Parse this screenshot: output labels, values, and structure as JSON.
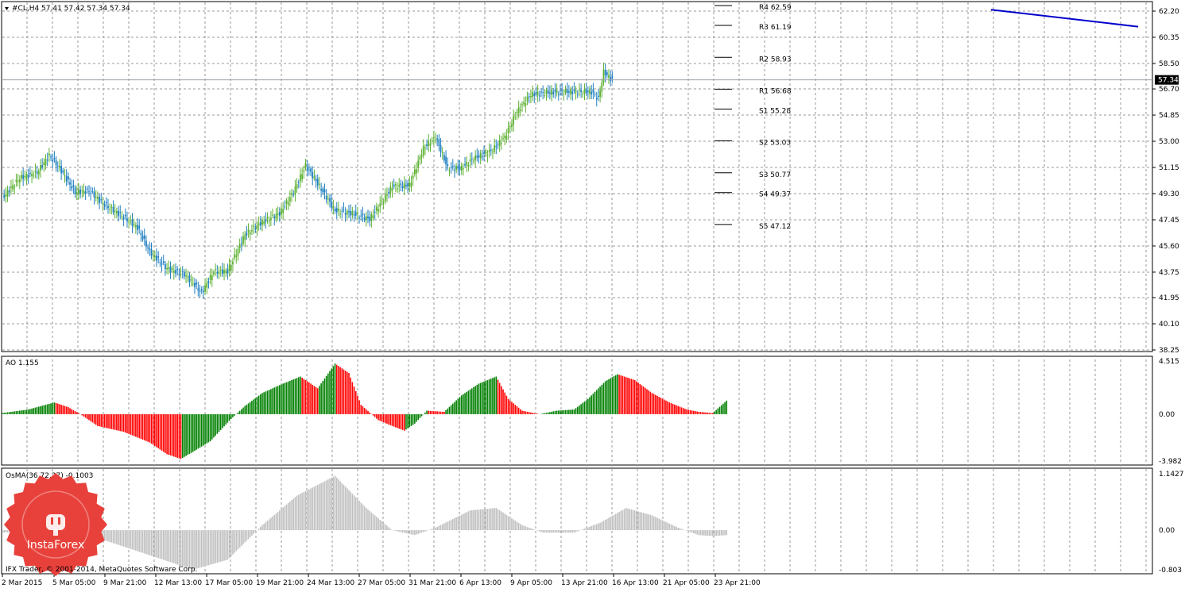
{
  "main_chart": {
    "header": "#CL,H4  57.41 57.42 57.34 57.34",
    "price_scale": [
      "62.20",
      "60.35",
      "58.50",
      "56.70",
      "54.85",
      "53.00",
      "51.15",
      "49.30",
      "47.45",
      "45.60",
      "43.75",
      "41.95",
      "40.10",
      "38.25"
    ],
    "current_price_badge": "57.34",
    "pivot_levels": [
      {
        "label": "R4 62.59",
        "value": 62.59
      },
      {
        "label": "R3 61.19",
        "value": 61.19
      },
      {
        "label": "R2 58.93",
        "value": 58.93
      },
      {
        "label": "R1 56.68",
        "value": 56.68
      },
      {
        "label": "S1 55.28",
        "value": 55.28
      },
      {
        "label": "S2 53.03",
        "value": 53.03
      },
      {
        "label": "S3 50.77",
        "value": 50.77
      },
      {
        "label": "S4 49.37",
        "value": 49.37
      },
      {
        "label": "S5 47.12",
        "value": 47.12
      }
    ],
    "colors": {
      "bull": "#5fb233",
      "bear": "#1f7fc1",
      "trendline": "#0000cc",
      "grid": "#9a9a9a"
    }
  },
  "ao": {
    "header": "AO 1.155",
    "scale": [
      "4.515",
      "0.00",
      "-3.982"
    ],
    "colors": {
      "up": "#008000",
      "down": "#ff0000"
    }
  },
  "osma": {
    "header": "OsMA(36,72,27) -0.1003",
    "scale": [
      "1.1427",
      "0.00",
      "-0.803"
    ],
    "color": "#c0c0c0"
  },
  "time_axis": [
    "2 Mar 2015",
    "5 Mar 05:00",
    "9 Mar 21:00",
    "12 Mar 13:00",
    "17 Mar 05:00",
    "19 Mar 21:00",
    "24 Mar 13:00",
    "27 Mar 05:00",
    "31 Mar 21:00",
    "6 Apr 13:00",
    "9 Apr 05:00",
    "13 Apr 21:00",
    "16 Apr 13:00",
    "21 Apr 05:00",
    "23 Apr 21:00"
  ],
  "watermark": {
    "brand": "InstaForex",
    "copyright": "IFX Trader, © 2001-2014, MetaQuotes Software Corp."
  },
  "chart_data": [
    {
      "type": "candlestick",
      "title": "#CL,H4",
      "ohlc_last": {
        "open": 57.41,
        "high": 57.42,
        "low": 57.34,
        "close": 57.34
      },
      "x_start": "2 Mar 2015",
      "x_end": "23 Apr 21:00",
      "ylim": [
        38.25,
        62.2
      ],
      "close_anchors": [
        [
          0,
          49.0
        ],
        [
          10,
          50.4
        ],
        [
          20,
          50.8
        ],
        [
          27,
          52.0
        ],
        [
          33,
          51.1
        ],
        [
          42,
          49.4
        ],
        [
          50,
          49.5
        ],
        [
          58,
          48.6
        ],
        [
          68,
          47.8
        ],
        [
          78,
          46.9
        ],
        [
          85,
          45.2
        ],
        [
          95,
          44.0
        ],
        [
          105,
          43.6
        ],
        [
          115,
          42.3
        ],
        [
          122,
          43.8
        ],
        [
          130,
          43.8
        ],
        [
          140,
          46.4
        ],
        [
          150,
          47.3
        ],
        [
          160,
          47.9
        ],
        [
          168,
          49.4
        ],
        [
          175,
          51.3
        ],
        [
          182,
          50.0
        ],
        [
          192,
          48.1
        ],
        [
          202,
          47.9
        ],
        [
          212,
          47.5
        ],
        [
          225,
          49.8
        ],
        [
          235,
          49.9
        ],
        [
          243,
          52.5
        ],
        [
          250,
          53.3
        ],
        [
          257,
          51.1
        ],
        [
          265,
          51.1
        ],
        [
          272,
          51.8
        ],
        [
          282,
          52.3
        ],
        [
          290,
          53.3
        ],
        [
          297,
          55.1
        ],
        [
          305,
          56.3
        ],
        [
          312,
          56.4
        ],
        [
          320,
          56.5
        ],
        [
          330,
          56.5
        ],
        [
          340,
          56.5
        ],
        [
          344,
          56.0
        ],
        [
          347,
          57.9
        ],
        [
          352,
          57.34
        ]
      ],
      "pivots": {
        "R4": 62.59,
        "R3": 61.19,
        "R2": 58.93,
        "R1": 56.68,
        "S1": 55.28,
        "S2": 53.03,
        "S3": 50.77,
        "S4": 49.37,
        "S5": 47.12
      },
      "trendline": {
        "from": 62.3,
        "to": 61.1
      }
    },
    {
      "type": "bar",
      "title": "AO 1.155",
      "ylim": [
        -3.982,
        4.515
      ],
      "anchors": [
        [
          0,
          0.1
        ],
        [
          15,
          0.4
        ],
        [
          30,
          1.0
        ],
        [
          38,
          0.6
        ],
        [
          45,
          0
        ],
        [
          55,
          -1.0
        ],
        [
          70,
          -1.5
        ],
        [
          85,
          -2.4
        ],
        [
          95,
          -3.4
        ],
        [
          103,
          -3.8
        ],
        [
          110,
          -3.2
        ],
        [
          120,
          -2.3
        ],
        [
          132,
          -0.4
        ],
        [
          140,
          0.7
        ],
        [
          150,
          1.8
        ],
        [
          162,
          2.6
        ],
        [
          172,
          3.2
        ],
        [
          182,
          2.2
        ],
        [
          192,
          4.3
        ],
        [
          200,
          3.5
        ],
        [
          207,
          0.8
        ],
        [
          217,
          -0.5
        ],
        [
          225,
          -1.0
        ],
        [
          232,
          -1.4
        ],
        [
          238,
          -0.8
        ],
        [
          245,
          0.3
        ],
        [
          255,
          0.2
        ],
        [
          265,
          1.6
        ],
        [
          275,
          2.6
        ],
        [
          285,
          3.2
        ],
        [
          292,
          1.3
        ],
        [
          300,
          0.3
        ],
        [
          310,
          0
        ],
        [
          320,
          0.3
        ],
        [
          330,
          0.4
        ],
        [
          338,
          1.3
        ],
        [
          348,
          2.8
        ],
        [
          355,
          3.4
        ],
        [
          365,
          2.9
        ],
        [
          375,
          1.8
        ],
        [
          385,
          1.0
        ],
        [
          395,
          0.4
        ],
        [
          402,
          0.2
        ],
        [
          410,
          0.1
        ],
        [
          418,
          1.155
        ]
      ]
    },
    {
      "type": "bar",
      "title": "OsMA(36,72,27)",
      "ylim": [
        -0.803,
        1.1427
      ],
      "anchors": [
        [
          0,
          -0.05
        ],
        [
          30,
          0.0
        ],
        [
          50,
          -0.1
        ],
        [
          80,
          -0.45
        ],
        [
          110,
          -0.8
        ],
        [
          130,
          -0.6
        ],
        [
          150,
          0.1
        ],
        [
          170,
          0.7
        ],
        [
          192,
          1.1
        ],
        [
          210,
          0.45
        ],
        [
          225,
          0.0
        ],
        [
          238,
          -0.1
        ],
        [
          250,
          0.05
        ],
        [
          270,
          0.4
        ],
        [
          285,
          0.45
        ],
        [
          300,
          0.1
        ],
        [
          312,
          -0.05
        ],
        [
          330,
          -0.05
        ],
        [
          345,
          0.15
        ],
        [
          360,
          0.45
        ],
        [
          375,
          0.3
        ],
        [
          390,
          0.05
        ],
        [
          402,
          -0.1
        ],
        [
          410,
          -0.12
        ],
        [
          418,
          -0.1003
        ]
      ]
    }
  ]
}
